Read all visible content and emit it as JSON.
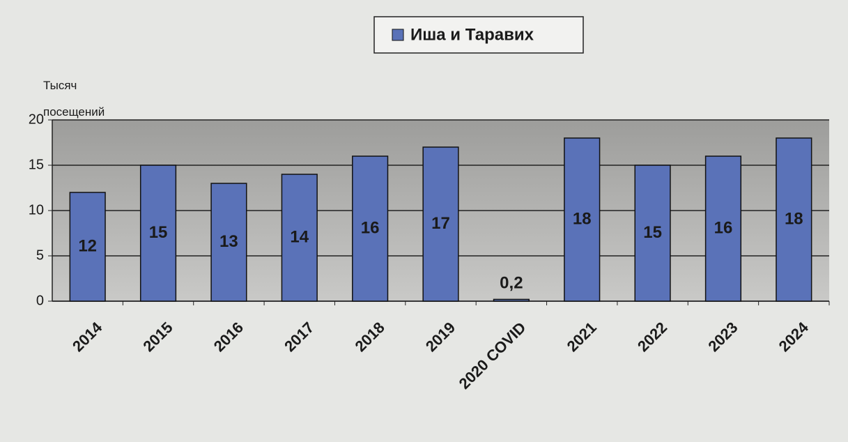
{
  "chart_data": {
    "type": "bar",
    "y_label": "Тысяч посещений",
    "categories": [
      "2014",
      "2015",
      "2016",
      "2017",
      "2018",
      "2019",
      "2020 COVID",
      "2021",
      "2022",
      "2023",
      "2024"
    ],
    "series": [
      {
        "name": "Иша и Таравих",
        "color": "#5a72b8",
        "values": [
          12,
          15,
          13,
          14,
          16,
          17,
          0.2,
          18,
          15,
          16,
          18
        ],
        "value_labels": [
          "12",
          "15",
          "13",
          "14",
          "16",
          "17",
          "0,2",
          "18",
          "15",
          "16",
          "18"
        ]
      }
    ],
    "ylim": [
      0,
      20
    ],
    "yticks": [
      0,
      5,
      10,
      15,
      20
    ],
    "grid": true,
    "legend": "top"
  }
}
